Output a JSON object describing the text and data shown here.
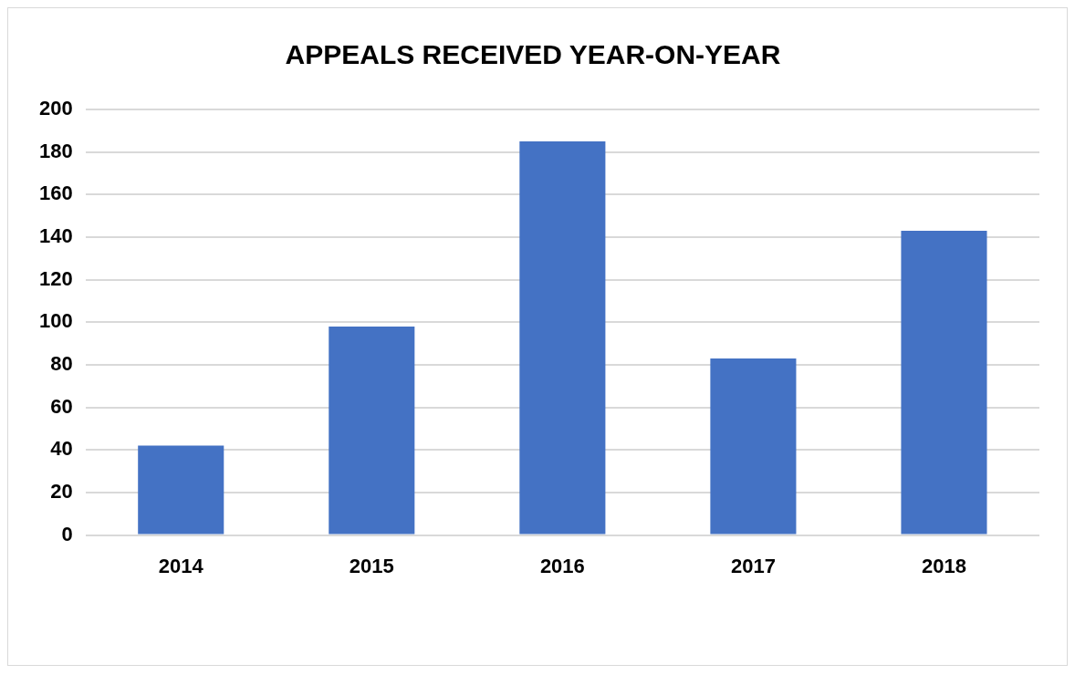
{
  "chart_data": {
    "type": "bar",
    "title": "APPEALS RECEIVED YEAR-ON-YEAR",
    "categories": [
      "2014",
      "2015",
      "2016",
      "2017",
      "2018"
    ],
    "values": [
      42,
      98,
      185,
      83,
      143
    ],
    "color": "#4472c4",
    "ylim": [
      0,
      200
    ],
    "yticks": [
      0,
      20,
      40,
      60,
      80,
      100,
      120,
      140,
      160,
      180,
      200
    ],
    "grid": "y",
    "legend": false
  }
}
